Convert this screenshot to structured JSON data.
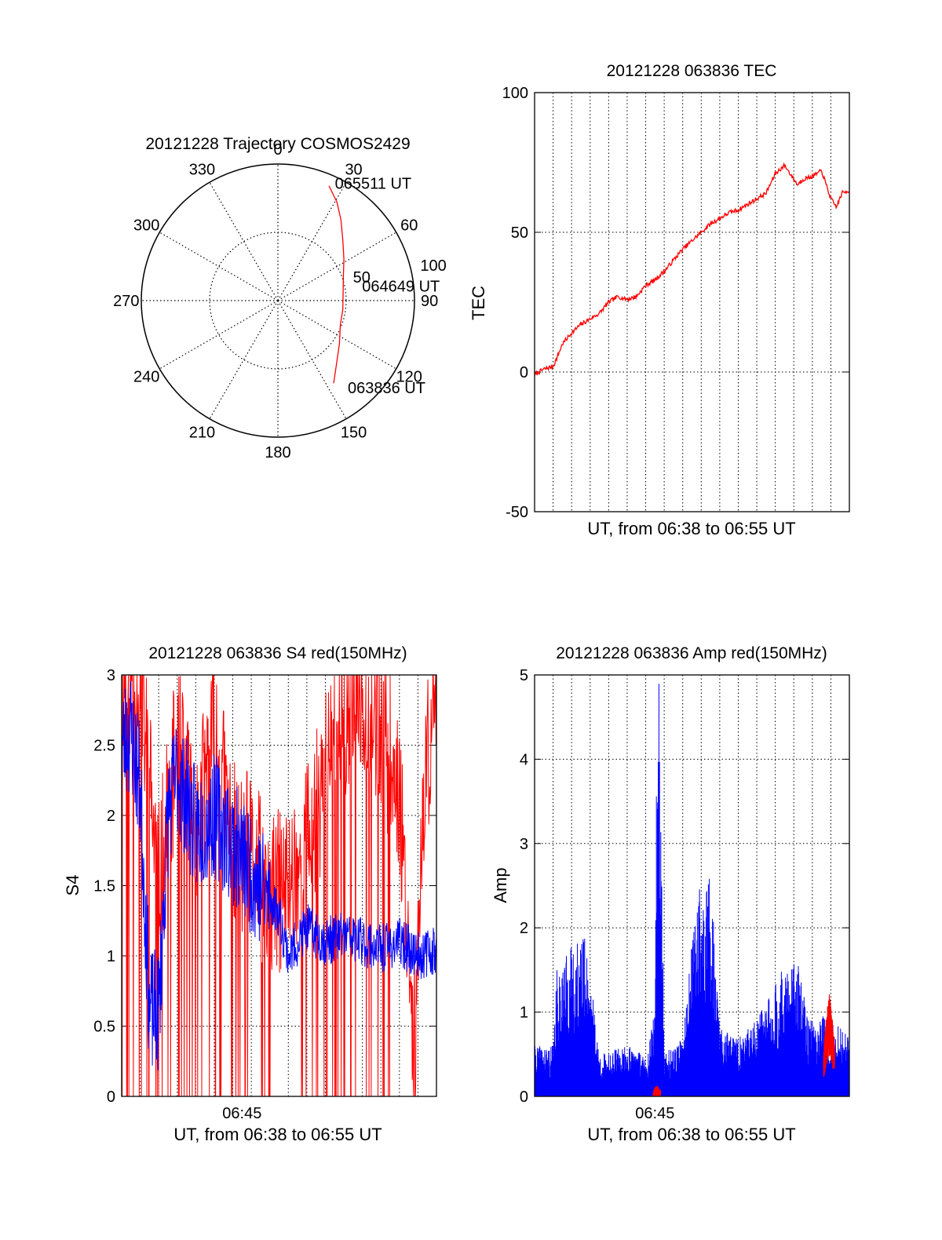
{
  "colors": {
    "red": "#ff0000",
    "blue": "#0000ff",
    "axis": "#000000",
    "background": "#ffffff"
  },
  "chart_data": [
    {
      "id": "trajectory",
      "type": "polar",
      "title": "20121228 Trajectory COSMOS2429",
      "azimuth_labels": [
        "0",
        "30",
        "60",
        "90",
        "120",
        "150",
        "180",
        "210",
        "240",
        "270",
        "300",
        "330"
      ],
      "radial_labels": [
        "50",
        "100"
      ],
      "rlim": [
        0,
        100
      ],
      "grid": true,
      "track": {
        "color": "#ff0000",
        "points": [
          {
            "az": 146,
            "r": 73
          },
          {
            "az": 137,
            "r": 63
          },
          {
            "az": 125,
            "r": 55
          },
          {
            "az": 111,
            "r": 49
          },
          {
            "az": 98,
            "r": 48
          },
          {
            "az": 84,
            "r": 48
          },
          {
            "az": 70,
            "r": 51
          },
          {
            "az": 58,
            "r": 57
          },
          {
            "az": 47,
            "r": 65
          },
          {
            "az": 38,
            "r": 75
          },
          {
            "az": 31,
            "r": 84
          },
          {
            "az": 24,
            "r": 92
          }
        ]
      },
      "annotations": [
        {
          "text": "065511 UT",
          "az": 27,
          "r": 92
        },
        {
          "text": "064649 UT",
          "az": 84,
          "r": 62
        },
        {
          "text": "063836 UT",
          "az": 143,
          "r": 85
        }
      ]
    },
    {
      "id": "tec",
      "type": "line",
      "title": "20121228 063836 TEC",
      "xlabel": "UT, from 06:38 to 06:55 UT",
      "ylabel": "TEC",
      "xlim": [
        0,
        17
      ],
      "ylim": [
        -50,
        100
      ],
      "yticks": [
        "-50",
        "0",
        "50",
        "100"
      ],
      "grid": true,
      "series": [
        {
          "color": "#ff0000",
          "x": [
            0,
            0.5,
            1,
            1.2,
            1.5,
            2,
            2.5,
            3,
            3.5,
            4,
            4.5,
            5,
            5.5,
            6,
            6.5,
            7,
            7.5,
            8,
            8.5,
            9,
            9.5,
            10,
            10.5,
            11,
            11.5,
            12,
            12.5,
            13,
            13.5,
            14,
            14.2,
            14.5,
            15,
            15.5,
            16,
            16.3,
            16.6,
            17
          ],
          "y": [
            -1,
            1,
            2,
            5,
            10,
            14,
            17,
            19,
            21,
            25,
            27,
            26,
            27,
            31,
            33,
            36,
            40,
            44,
            47,
            50,
            53,
            55,
            57,
            58,
            60,
            62,
            64,
            71,
            74,
            69,
            67,
            69,
            70,
            72,
            62,
            59,
            64,
            65
          ]
        }
      ]
    },
    {
      "id": "s4",
      "type": "line",
      "title": "20121228 063836 S4 red(150MHz)",
      "xlabel": "UT, from 06:38 to 06:55 UT",
      "ylabel": "S4",
      "xlim": [
        0,
        17
      ],
      "ylim": [
        0,
        3
      ],
      "yticks": [
        "0",
        "0.5",
        "1",
        "1.5",
        "2",
        "2.5",
        "3"
      ],
      "xticks": [
        {
          "value": 6.5,
          "label": "06:45"
        }
      ],
      "grid": true,
      "series": [
        {
          "color": "#ff0000",
          "x": [
            0,
            1,
            2,
            3,
            4,
            5,
            6,
            7,
            8,
            9,
            10,
            11,
            12,
            13,
            14,
            15,
            15.8,
            16.5,
            17
          ],
          "y": [
            3,
            3,
            1.5,
            2.5,
            1.9,
            2.6,
            1.8,
            1.7,
            1.4,
            1.5,
            1.8,
            2.3,
            2.7,
            2.9,
            2.6,
            2.2,
            0.4,
            2.4,
            3
          ]
        },
        {
          "color": "#0000ff",
          "x": [
            0,
            0.5,
            1,
            1.5,
            2,
            2.5,
            3,
            3.5,
            4,
            5,
            6,
            6.5,
            7,
            7.5,
            8,
            8.5,
            9,
            10,
            11,
            12,
            13,
            14,
            15,
            16,
            17
          ],
          "y": [
            2.5,
            2.6,
            2.2,
            0.6,
            0.6,
            2.0,
            2.3,
            2.1,
            1.9,
            2.0,
            1.8,
            1.7,
            1.6,
            1.5,
            1.4,
            1.3,
            1.0,
            1.2,
            1.1,
            1.15,
            1.1,
            1.05,
            1.1,
            1.0,
            1.05
          ]
        }
      ]
    },
    {
      "id": "amp",
      "type": "line",
      "title": "20121228 063836 Amp red(150MHz)",
      "xlabel": "UT, from 06:38 to 06:55 UT",
      "ylabel": "Amp",
      "xlim": [
        0,
        17
      ],
      "ylim": [
        0,
        5
      ],
      "yticks": [
        "0",
        "1",
        "2",
        "3",
        "4",
        "5"
      ],
      "xticks": [
        {
          "value": 6.5,
          "label": "06:45"
        }
      ],
      "grid": true,
      "series": [
        {
          "color": "#0000ff",
          "x": [
            0,
            1,
            1.2,
            2,
            2.8,
            3.5,
            5,
            6,
            6.5,
            6.6,
            6.75,
            7,
            8,
            8.8,
            9.2,
            9.5,
            10,
            11,
            12,
            13.3,
            14.2,
            14.8,
            15.5,
            16,
            16.6,
            17
          ],
          "y": [
            0.6,
            0.6,
            1.5,
            1.8,
            1.9,
            0.5,
            0.6,
            0.5,
            1.0,
            4.6,
            5.0,
            0.5,
            0.7,
            2.5,
            2.4,
            2.7,
            0.8,
            0.7,
            0.9,
            1.5,
            1.6,
            0.9,
            1.0,
            0.9,
            0.8,
            0.7
          ]
        },
        {
          "color": "#ff0000",
          "x": [
            6.4,
            6.6,
            6.8,
            15.6,
            15.9,
            16.2
          ],
          "y": [
            0.05,
            0.1,
            0.05,
            0.5,
            1.2,
            0.6
          ]
        }
      ]
    }
  ]
}
